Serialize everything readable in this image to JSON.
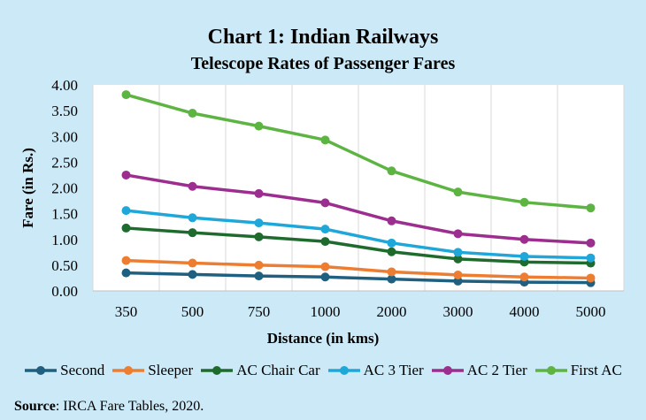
{
  "chart_data": {
    "type": "line",
    "title": "Chart 1: Indian Railways",
    "subtitle": "Telescope Rates of Passenger Fares",
    "xlabel": "Distance (in kms)",
    "ylabel": "Fare (in Rs.)",
    "categories": [
      "350",
      "500",
      "750",
      "1000",
      "2000",
      "3000",
      "4000",
      "5000"
    ],
    "ylim": [
      0,
      4
    ],
    "yticks": [
      "0.00",
      "0.50",
      "1.00",
      "1.50",
      "2.00",
      "2.50",
      "3.00",
      "3.50",
      "4.00"
    ],
    "grid": "vertical",
    "legend_position": "bottom",
    "series": [
      {
        "name": "Second",
        "color": "#1f5f7f",
        "values": [
          0.35,
          0.32,
          0.29,
          0.27,
          0.23,
          0.19,
          0.17,
          0.16
        ]
      },
      {
        "name": "Sleeper",
        "color": "#ed7d31",
        "values": [
          0.59,
          0.54,
          0.5,
          0.47,
          0.37,
          0.31,
          0.27,
          0.25
        ]
      },
      {
        "name": "AC Chair Car",
        "color": "#1f6b2e",
        "values": [
          1.22,
          1.13,
          1.05,
          0.96,
          0.76,
          0.62,
          0.56,
          0.54
        ]
      },
      {
        "name": "AC 3 Tier",
        "color": "#1ea7d8",
        "values": [
          1.56,
          1.42,
          1.32,
          1.2,
          0.93,
          0.75,
          0.67,
          0.64
        ]
      },
      {
        "name": "AC 2 Tier",
        "color": "#9b2e8e",
        "values": [
          2.25,
          2.03,
          1.89,
          1.71,
          1.36,
          1.11,
          1.0,
          0.93
        ]
      },
      {
        "name": "First AC",
        "color": "#5db443",
        "values": [
          3.81,
          3.45,
          3.2,
          2.93,
          2.33,
          1.92,
          1.72,
          1.61
        ]
      }
    ]
  },
  "source": {
    "label": "Source",
    "text": ": IRCA Fare Tables, 2020."
  }
}
